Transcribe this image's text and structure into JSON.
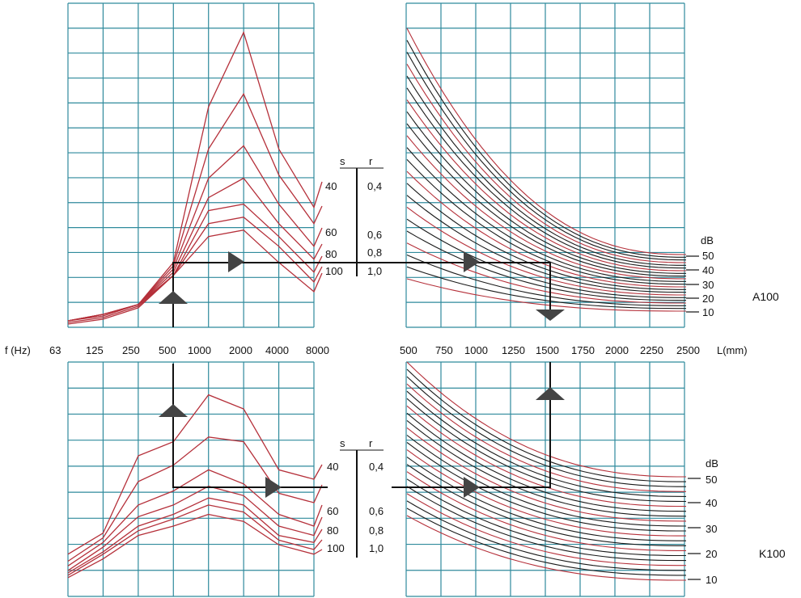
{
  "chart_data": [
    {
      "type": "line",
      "panel": "A100",
      "x_freq_label": "f (Hz)",
      "x_freq": [
        "63",
        "125",
        "250",
        "500",
        "1000",
        "2000",
        "4000",
        "8000"
      ],
      "x_length_label": "L(mm)",
      "x_length": [
        "500",
        "750",
        "1000",
        "1250",
        "1500",
        "1750",
        "2000",
        "2250",
        "2500"
      ],
      "series_freq": [
        {
          "name": "40",
          "values": [
            2,
            4,
            7,
            20,
            68,
            91,
            55,
            37
          ]
        },
        {
          "name": "",
          "values": [
            2,
            4,
            7,
            19,
            55,
            72,
            47,
            32
          ]
        },
        {
          "name": "60",
          "values": [
            2,
            4,
            7,
            18,
            46,
            56,
            38,
            25
          ]
        },
        {
          "name": "",
          "values": [
            2,
            4,
            7,
            17,
            40,
            46,
            32,
            21
          ]
        },
        {
          "name": "80",
          "values": [
            2,
            3.5,
            7,
            16,
            36,
            38,
            28,
            17
          ]
        },
        {
          "name": "",
          "values": [
            1.5,
            3,
            6.5,
            16,
            32,
            34,
            25,
            14
          ]
        },
        {
          "name": "100",
          "values": [
            1,
            2.5,
            6,
            16,
            28,
            30,
            20,
            11
          ]
        }
      ],
      "scale_length": {
        "label": "dB",
        "ticks": [
          "10",
          "20",
          "30",
          "40",
          "50"
        ]
      },
      "curves_length_count": 22,
      "s_label": "s",
      "r_label": "r",
      "s_values": [
        "40",
        "60",
        "80",
        "100"
      ],
      "r_values": [
        "0,4",
        "0,6",
        "0,8",
        "1,0"
      ],
      "example": {
        "freq": "500",
        "length": "1500"
      }
    },
    {
      "type": "line",
      "panel": "K100",
      "x_freq": [
        "63",
        "125",
        "250",
        "500",
        "1000",
        "2000",
        "4000",
        "8000"
      ],
      "x_length": [
        "500",
        "750",
        "1000",
        "1250",
        "1500",
        "1750",
        "2000",
        "2250",
        "2500"
      ],
      "series_freq": [
        {
          "name": "40",
          "values": [
            18,
            27,
            60,
            66,
            86,
            80,
            54,
            50
          ]
        },
        {
          "name": "",
          "values": [
            15,
            25,
            49,
            56,
            68,
            66,
            44,
            40
          ]
        },
        {
          "name": "60",
          "values": [
            13,
            23,
            39,
            45,
            54,
            48,
            35,
            30
          ]
        },
        {
          "name": "",
          "values": [
            11,
            21,
            34,
            39,
            47,
            43,
            30,
            26
          ]
        },
        {
          "name": "80",
          "values": [
            10,
            19,
            30,
            35,
            42,
            39,
            26,
            23
          ]
        },
        {
          "name": "",
          "values": [
            9,
            18,
            28,
            33,
            39,
            36,
            24,
            20
          ]
        },
        {
          "name": "100",
          "values": [
            8,
            16,
            26,
            30,
            35,
            32,
            22,
            18
          ]
        }
      ],
      "scale_length": {
        "label": "dB",
        "ticks": [
          "10",
          "20",
          "30",
          "40",
          "50"
        ]
      },
      "curves_length_count": 22,
      "s_label": "s",
      "r_label": "r",
      "s_values": [
        "40",
        "60",
        "80",
        "100"
      ],
      "r_values": [
        "0,4",
        "0,6",
        "0,8",
        "1,0"
      ],
      "example": {
        "freq": "500",
        "length": "1500"
      }
    }
  ],
  "labels": {
    "panel_top": "A100",
    "panel_bottom": "K100",
    "freq_axis": "f (Hz)",
    "length_axis": "L(mm)"
  },
  "colors": {
    "grid": "#2f8a9c",
    "curve_red": "#b5303a",
    "curve_black": "#1a1a1a",
    "background": "#ffffff"
  }
}
